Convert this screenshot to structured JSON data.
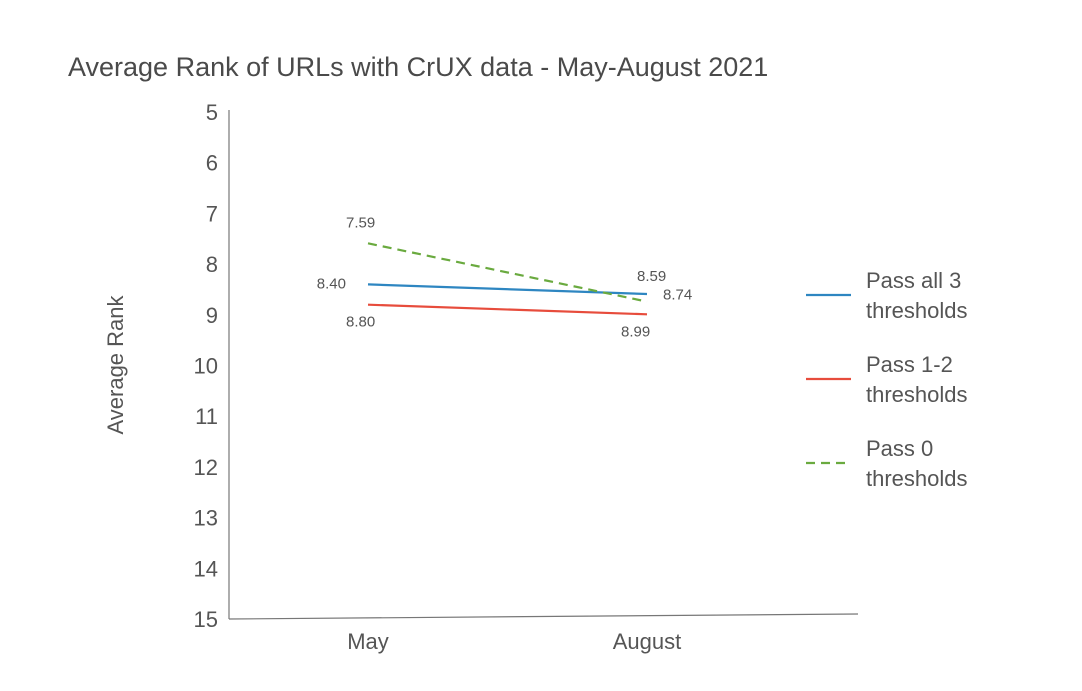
{
  "chart_data": {
    "type": "line",
    "title": "Average Rank of URLs with CrUX data - May-August 2021",
    "xlabel": "",
    "ylabel": "Average Rank",
    "categories": [
      "May",
      "August"
    ],
    "ylim": [
      5,
      15
    ],
    "y_inverted": true,
    "yticks": [
      "5",
      "6",
      "7",
      "8",
      "9",
      "10",
      "11",
      "12",
      "13",
      "14",
      "15"
    ],
    "grid": false,
    "legend_position": "right",
    "series": [
      {
        "name_lines": [
          "Pass all 3",
          "thresholds"
        ],
        "values": [
          8.4,
          8.59
        ],
        "labels": [
          "8.40",
          "8.59"
        ],
        "color": "#2e86c1",
        "dashed": false
      },
      {
        "name_lines": [
          "Pass 1-2",
          "thresholds"
        ],
        "values": [
          8.8,
          8.99
        ],
        "labels": [
          "8.80",
          "8.99"
        ],
        "color": "#e74c3c",
        "dashed": false
      },
      {
        "name_lines": [
          "Pass 0",
          "thresholds"
        ],
        "values": [
          7.59,
          8.74
        ],
        "labels": [
          "7.59",
          "8.74"
        ],
        "color": "#6aaa3f",
        "dashed": true
      }
    ]
  }
}
